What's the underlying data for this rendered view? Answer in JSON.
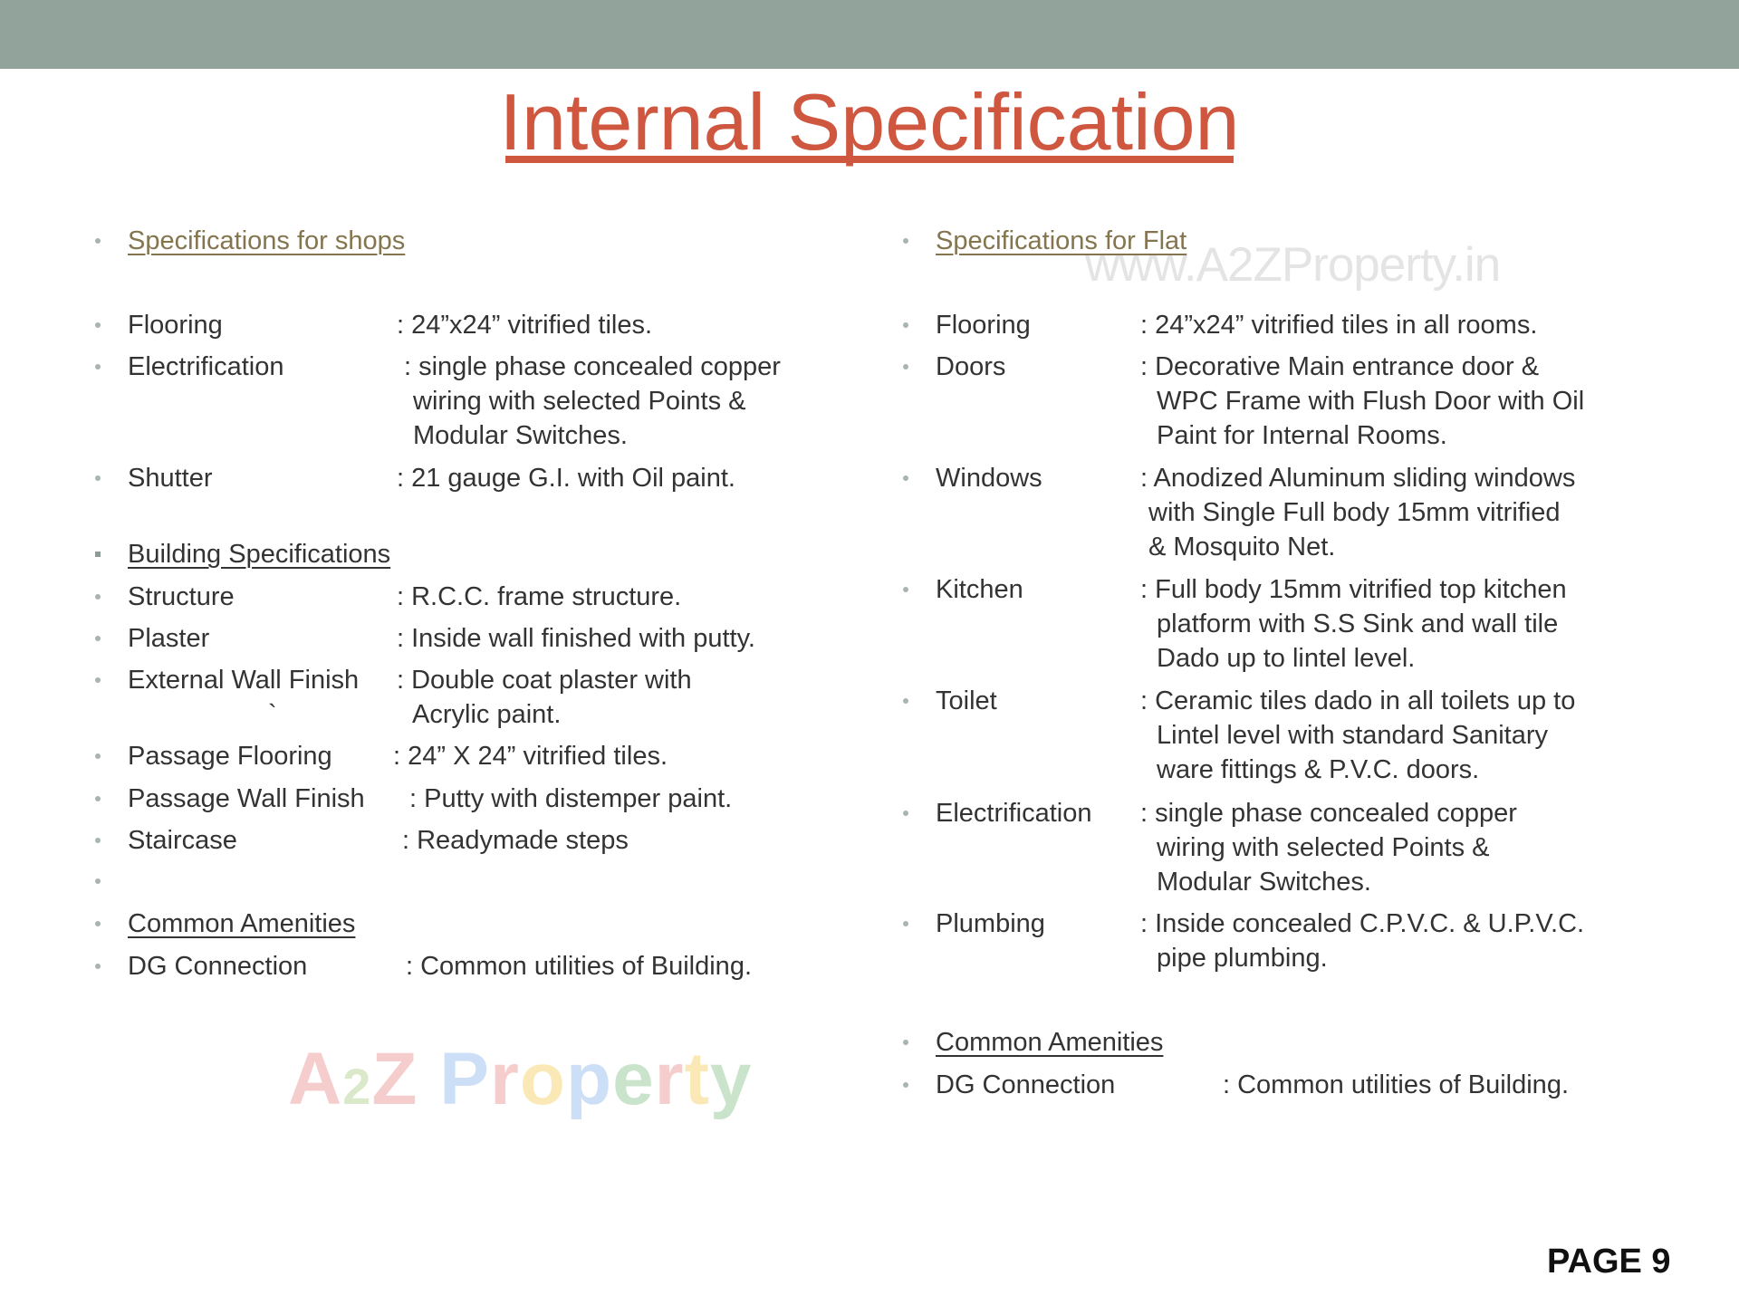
{
  "title": "Internal Specification",
  "watermark_url": "www.A2ZProperty.in",
  "logo_text": "A2Z Property",
  "page_label": "PAGE 9",
  "colors": {
    "topbar": "#91a39a",
    "title": "#d0573f",
    "section_heading": "#85754f"
  },
  "left": {
    "shops_heading": "Specifications for shops",
    "shops": [
      {
        "label": "Flooring",
        "value": [
          ": 24”x24” vitrified tiles."
        ]
      },
      {
        "label": "Electrification",
        "value": [
          ": single phase concealed copper",
          "wiring with  selected Points &",
          "Modular Switches."
        ]
      },
      {
        "label": "Shutter",
        "value": [
          ": 21 gauge G.I. with Oil paint."
        ]
      }
    ],
    "building_heading": "Building Specifications",
    "building": [
      {
        "label": "Structure",
        "value": [
          ": R.C.C. frame structure."
        ]
      },
      {
        "label": "Plaster",
        "value": [
          ": Inside wall finished with  putty."
        ]
      },
      {
        "label": "External Wall Finish",
        "value": [
          ": Double coat plaster with",
          "Acrylic paint."
        ],
        "mark": "`"
      },
      {
        "label": "Passage Flooring",
        "value": [
          ": 24” X 24” vitrified tiles."
        ]
      },
      {
        "label": "Passage Wall Finish",
        "value": [
          ": Putty with distemper paint."
        ]
      },
      {
        "label": "Staircase",
        "value": [
          ": Readymade steps"
        ]
      }
    ],
    "amenities_heading": "Common Amenities",
    "amenities": [
      {
        "label": "DG Connection",
        "value": [
          ": Common utilities of Building."
        ]
      }
    ]
  },
  "right": {
    "flat_heading": "Specifications for Flat",
    "flat": [
      {
        "label": "Flooring",
        "value": [
          ": 24”x24” vitrified tiles in all rooms."
        ]
      },
      {
        "label": "Doors",
        "value": [
          ": Decorative Main entrance door &",
          "WPC Frame with Flush Door with Oil",
          "Paint for Internal Rooms."
        ]
      },
      {
        "label": "Windows",
        "value": [
          ": Anodized Aluminum sliding windows",
          "with Single  Full body 15mm vitrified",
          "& Mosquito Net."
        ]
      },
      {
        "label": "Kitchen",
        "value": [
          ": Full body 15mm vitrified top kitchen",
          "platform  with S.S Sink and wall tile",
          "Dado up to lintel level."
        ]
      },
      {
        "label": "Toilet",
        "value": [
          ": Ceramic tiles dado in all toilets up to",
          "Lintel level with  standard Sanitary",
          "ware fittings & P.V.C. doors."
        ]
      },
      {
        "label": "Electrification",
        "value": [
          ": single phase concealed copper",
          "wiring with selected Points &",
          "Modular Switches."
        ]
      },
      {
        "label": "Plumbing",
        "value": [
          ": Inside concealed C.P.V.C. & U.P.V.C.",
          "pipe plumbing."
        ]
      }
    ],
    "amenities_heading": "Common Amenities",
    "amenities": [
      {
        "label": "DG Connection",
        "value": [
          ": Common utilities of Building."
        ]
      }
    ]
  }
}
